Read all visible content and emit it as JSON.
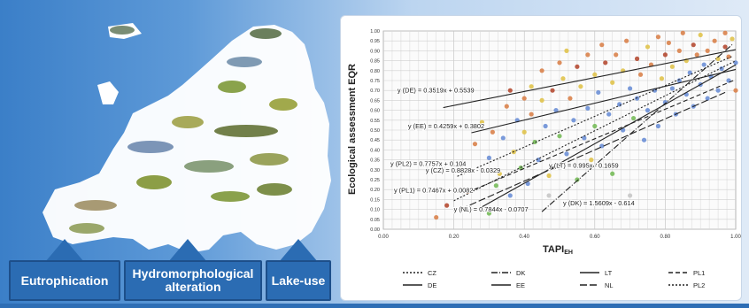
{
  "pressures": [
    {
      "label": "Eutrophication"
    },
    {
      "label": "Hydromorphological alteration"
    },
    {
      "label": "Lake-use"
    }
  ],
  "chart_data": {
    "type": "scatter",
    "xlabel": "TAPI",
    "xlabel_subscript": "EH",
    "ylabel": "Ecological assessment EQR",
    "xlim": [
      0,
      1
    ],
    "ylim": [
      0,
      1
    ],
    "x_ticks": [
      "0.00",
      "0.20",
      "0.40",
      "0.60",
      "0.80",
      "1.00"
    ],
    "y_ticks": [
      "0.00",
      "0.05",
      "0.10",
      "0.15",
      "0.20",
      "0.25",
      "0.30",
      "0.35",
      "0.40",
      "0.45",
      "0.50",
      "0.55",
      "0.60",
      "0.65",
      "0.70",
      "0.75",
      "0.80",
      "0.85",
      "0.90",
      "0.95",
      "1.00"
    ],
    "grid": true,
    "series": [
      {
        "name": "CZ",
        "equation": "y (CZ) = 0.8828x - 0.0329",
        "slope": 0.8828,
        "intercept": -0.0329,
        "x_range": [
          0.2,
          1.0
        ],
        "dash": "2,2",
        "color": "#222222"
      },
      {
        "name": "DE",
        "equation": "y (DE) = 0.3519x + 0.5539",
        "slope": 0.3519,
        "intercept": 0.5539,
        "x_range": [
          0.17,
          1.0
        ],
        "dash": "",
        "color": "#222222"
      },
      {
        "name": "DK",
        "equation": "y (DK) = 1.5609x - 0.614",
        "slope": 1.5609,
        "intercept": -0.614,
        "x_range": [
          0.45,
          0.99
        ],
        "dash": "7,2,1,2",
        "color": "#222222"
      },
      {
        "name": "EE",
        "equation": "y (EE) = 0.4259x + 0.3802",
        "slope": 0.4259,
        "intercept": 0.3802,
        "x_range": [
          0.25,
          1.0
        ],
        "dash": "",
        "color": "#222222"
      },
      {
        "name": "LT",
        "equation": "y (LT) = 0.995x - 0.1659",
        "slope": 0.995,
        "intercept": -0.1659,
        "x_range": [
          0.28,
          1.0
        ],
        "dash": "",
        "color": "#222222"
      },
      {
        "name": "NL",
        "equation": "y (NL) = 0.7844x - 0.0707",
        "slope": 0.7844,
        "intercept": -0.0707,
        "x_range": [
          0.22,
          0.97
        ],
        "dash": "8,3",
        "color": "#222222"
      },
      {
        "name": "PL1",
        "equation": "y (PL1) = 0.7467x + 0.0082",
        "slope": 0.7467,
        "intercept": 0.0082,
        "x_range": [
          0.24,
          1.0
        ],
        "dash": "5,3",
        "color": "#222222"
      },
      {
        "name": "PL2",
        "equation": "y (PL2) = 0.7757x + 0.104",
        "slope": 0.7757,
        "intercept": 0.104,
        "x_range": [
          0.21,
          0.99
        ],
        "dash": "2,2",
        "color": "#222222"
      }
    ],
    "legend": {
      "placement": "bottom",
      "rows": [
        [
          "CZ",
          "DK",
          "LT",
          "PL1"
        ],
        [
          "DE",
          "EE",
          "NL",
          "PL2"
        ]
      ]
    },
    "point_colors": [
      "#d9824b",
      "#e0c34d",
      "#6c8fd6",
      "#77bb5a",
      "#b54b33",
      "#c7c7c7"
    ],
    "points": [
      [
        0.15,
        0.06,
        0
      ],
      [
        0.18,
        0.12,
        4
      ],
      [
        0.22,
        0.3,
        1
      ],
      [
        0.24,
        0.19,
        0
      ],
      [
        0.26,
        0.43,
        0
      ],
      [
        0.28,
        0.54,
        1
      ],
      [
        0.3,
        0.08,
        3
      ],
      [
        0.3,
        0.36,
        2
      ],
      [
        0.31,
        0.49,
        0
      ],
      [
        0.32,
        0.22,
        3
      ],
      [
        0.33,
        0.28,
        1
      ],
      [
        0.34,
        0.46,
        2
      ],
      [
        0.35,
        0.62,
        0
      ],
      [
        0.36,
        0.17,
        2
      ],
      [
        0.36,
        0.7,
        4
      ],
      [
        0.37,
        0.39,
        1
      ],
      [
        0.38,
        0.55,
        2
      ],
      [
        0.39,
        0.31,
        3
      ],
      [
        0.4,
        0.66,
        0
      ],
      [
        0.4,
        0.49,
        1
      ],
      [
        0.41,
        0.23,
        2
      ],
      [
        0.42,
        0.72,
        1
      ],
      [
        0.42,
        0.58,
        0
      ],
      [
        0.43,
        0.44,
        3
      ],
      [
        0.44,
        0.35,
        2
      ],
      [
        0.45,
        0.8,
        0
      ],
      [
        0.45,
        0.65,
        1
      ],
      [
        0.46,
        0.52,
        2
      ],
      [
        0.47,
        0.17,
        5
      ],
      [
        0.47,
        0.27,
        1
      ],
      [
        0.48,
        0.7,
        4
      ],
      [
        0.49,
        0.6,
        2
      ],
      [
        0.5,
        0.84,
        0
      ],
      [
        0.5,
        0.47,
        3
      ],
      [
        0.51,
        0.76,
        1
      ],
      [
        0.52,
        0.38,
        2
      ],
      [
        0.52,
        0.9,
        1
      ],
      [
        0.53,
        0.66,
        0
      ],
      [
        0.54,
        0.55,
        2
      ],
      [
        0.55,
        0.82,
        4
      ],
      [
        0.55,
        0.25,
        3
      ],
      [
        0.56,
        0.72,
        1
      ],
      [
        0.57,
        0.46,
        2
      ],
      [
        0.58,
        0.88,
        0
      ],
      [
        0.58,
        0.61,
        2
      ],
      [
        0.59,
        0.35,
        1
      ],
      [
        0.6,
        0.78,
        1
      ],
      [
        0.6,
        0.52,
        3
      ],
      [
        0.61,
        0.69,
        2
      ],
      [
        0.62,
        0.93,
        0
      ],
      [
        0.62,
        0.42,
        2
      ],
      [
        0.63,
        0.84,
        4
      ],
      [
        0.64,
        0.58,
        2
      ],
      [
        0.65,
        0.74,
        1
      ],
      [
        0.65,
        0.28,
        3
      ],
      [
        0.66,
        0.88,
        0
      ],
      [
        0.67,
        0.63,
        2
      ],
      [
        0.68,
        0.5,
        2
      ],
      [
        0.68,
        0.8,
        1
      ],
      [
        0.69,
        0.95,
        0
      ],
      [
        0.7,
        0.71,
        2
      ],
      [
        0.7,
        0.17,
        5
      ],
      [
        0.71,
        0.56,
        3
      ],
      [
        0.72,
        0.86,
        4
      ],
      [
        0.72,
        0.66,
        2
      ],
      [
        0.73,
        0.78,
        0
      ],
      [
        0.74,
        0.45,
        2
      ],
      [
        0.75,
        0.92,
        1
      ],
      [
        0.75,
        0.6,
        2
      ],
      [
        0.76,
        0.83,
        0
      ],
      [
        0.77,
        0.7,
        2
      ],
      [
        0.78,
        0.97,
        0
      ],
      [
        0.78,
        0.52,
        2
      ],
      [
        0.79,
        0.76,
        1
      ],
      [
        0.8,
        0.88,
        4
      ],
      [
        0.8,
        0.64,
        2
      ],
      [
        0.81,
        0.94,
        0
      ],
      [
        0.82,
        0.71,
        2
      ],
      [
        0.82,
        0.82,
        1
      ],
      [
        0.83,
        0.58,
        2
      ],
      [
        0.84,
        0.9,
        0
      ],
      [
        0.84,
        0.75,
        2
      ],
      [
        0.85,
        0.99,
        0
      ],
      [
        0.86,
        0.68,
        2
      ],
      [
        0.86,
        0.85,
        1
      ],
      [
        0.87,
        0.79,
        2
      ],
      [
        0.88,
        0.93,
        4
      ],
      [
        0.88,
        0.62,
        2
      ],
      [
        0.89,
        0.88,
        0
      ],
      [
        0.9,
        0.73,
        2
      ],
      [
        0.9,
        0.98,
        1
      ],
      [
        0.91,
        0.83,
        2
      ],
      [
        0.92,
        0.9,
        0
      ],
      [
        0.92,
        0.66,
        2
      ],
      [
        0.93,
        0.77,
        2
      ],
      [
        0.94,
        0.95,
        0
      ],
      [
        0.95,
        0.86,
        1
      ],
      [
        0.95,
        0.7,
        2
      ],
      [
        0.96,
        0.81,
        2
      ],
      [
        0.97,
        0.92,
        4
      ],
      [
        0.97,
        0.99,
        0
      ],
      [
        0.98,
        0.75,
        2
      ],
      [
        0.98,
        0.87,
        0
      ],
      [
        0.99,
        0.96,
        1
      ],
      [
        1.0,
        0.84,
        2
      ],
      [
        1.0,
        0.7,
        0
      ]
    ]
  }
}
